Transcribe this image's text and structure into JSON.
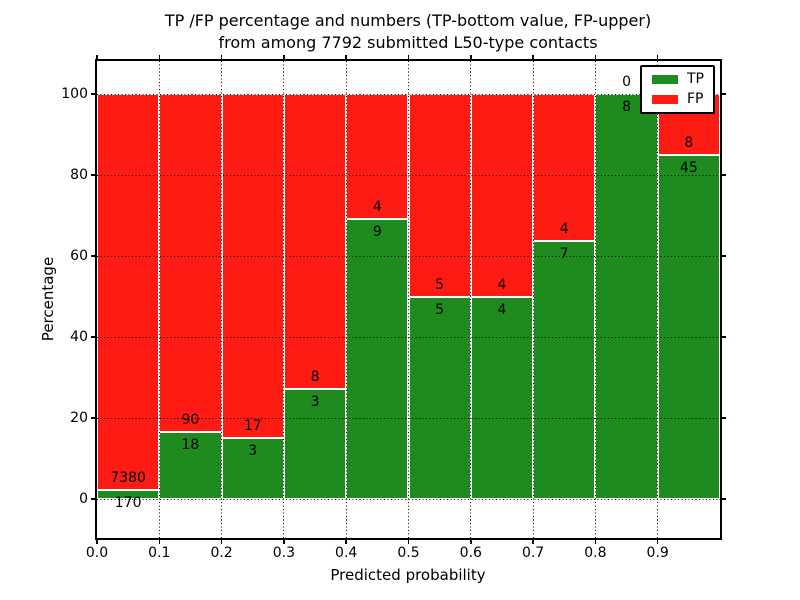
{
  "chart_data": {
    "type": "bar",
    "stacked": true,
    "normalization": "each bar scaled to 100%; labels show raw counts (TP bottom value, FP upper)",
    "title_lines": [
      "TP /FP percentage and numbers (TP-bottom value, FP-upper)",
      "from among 7792 submitted L50-type contacts"
    ],
    "total_submitted_contacts": 7792,
    "xlabel": "Predicted probability",
    "ylabel": "Percentage",
    "xlim": [
      0.0,
      1.0
    ],
    "ylim": [
      -9.6,
      108.2
    ],
    "bin_width": 0.1,
    "x_tick_labels": [
      "0.0",
      "0.1",
      "0.2",
      "0.3",
      "0.4",
      "0.5",
      "0.6",
      "0.7",
      "0.8",
      "0.9"
    ],
    "y_ticks": [
      0,
      20,
      40,
      60,
      80,
      100
    ],
    "y_tick_labels": [
      "0",
      "20",
      "40",
      "60",
      "80",
      "100"
    ],
    "grid": "dotted, black, drawn over bars",
    "legend_position": "upper right",
    "series": [
      {
        "name": "TP",
        "color": "#1f8b1f",
        "values": [
          170,
          18,
          3,
          3,
          9,
          5,
          4,
          7,
          8,
          45
        ]
      },
      {
        "name": "FP",
        "color": "#fe1b14",
        "values": [
          7380,
          90,
          17,
          8,
          4,
          5,
          4,
          4,
          0,
          8
        ]
      }
    ],
    "tp_percent_of_bar": [
      2.3,
      16.7,
      15.0,
      27.3,
      69.2,
      50.0,
      50.0,
      63.6,
      100.0,
      84.9
    ]
  },
  "colors": {
    "tp_green": "#1f8b1f",
    "fp_red": "#fe1b14",
    "text": "#000000",
    "background": "#ffffff",
    "bar_edge": "#ffffff",
    "grid": "#000000"
  }
}
